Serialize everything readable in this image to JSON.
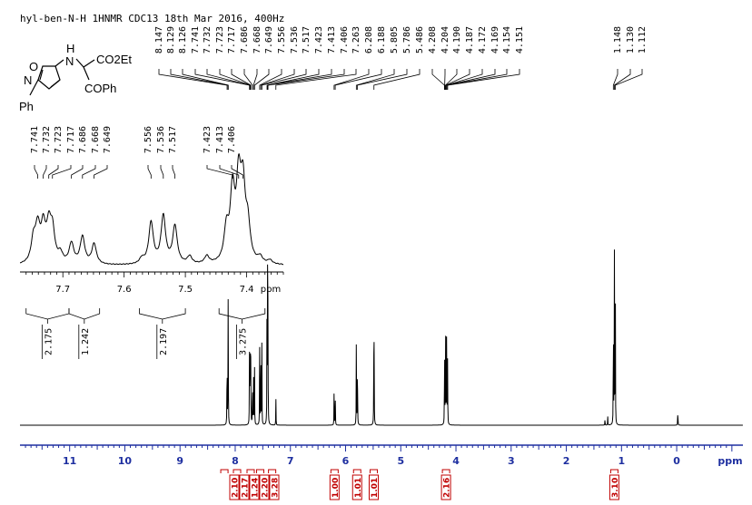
{
  "title": "hyl-ben-N-H 1HNMR CDC13 18th Mar 2016, 400Hz",
  "structure": {
    "ester": "CO2Et",
    "ketone": "COPh",
    "nh": "N",
    "h": "H",
    "ring_o": "O",
    "ring_n": "N",
    "ph": "Ph"
  },
  "colors": {
    "axis": "#1e2fa0",
    "integral_box": "#c00000",
    "trace": "#000000"
  },
  "chart_data": [
    {
      "type": "line",
      "title": "",
      "xlabel": "ppm",
      "xlim": [
        11.9,
        -1.2
      ],
      "x_reversed": true,
      "x_ticks": [
        11,
        10,
        9,
        8,
        7,
        6,
        5,
        4,
        3,
        2,
        1,
        0
      ],
      "peak_labels": [
        "8.147",
        "8.129",
        "8.126",
        "7.741",
        "7.732",
        "7.723",
        "7.717",
        "7.686",
        "7.668",
        "7.649",
        "7.556",
        "7.536",
        "7.517",
        "7.423",
        "7.413",
        "7.406",
        "7.263",
        "6.208",
        "6.188",
        "5.805",
        "5.786",
        "5.486",
        "4.208",
        "4.204",
        "4.190",
        "4.187",
        "4.172",
        "4.169",
        "4.154",
        "4.151",
        "1.148",
        "1.130",
        "1.112"
      ],
      "peaks": [
        {
          "x": 8.147,
          "h": 0.41
        },
        {
          "x": 8.129,
          "h": 0.43
        },
        {
          "x": 8.126,
          "h": 0.36
        },
        {
          "x": 7.741,
          "h": 0.31
        },
        {
          "x": 7.732,
          "h": 0.32
        },
        {
          "x": 7.723,
          "h": 0.3
        },
        {
          "x": 7.717,
          "h": 0.29
        },
        {
          "x": 7.686,
          "h": 0.26
        },
        {
          "x": 7.668,
          "h": 0.3
        },
        {
          "x": 7.649,
          "h": 0.26
        },
        {
          "x": 7.556,
          "h": 0.4
        },
        {
          "x": 7.536,
          "h": 0.45
        },
        {
          "x": 7.517,
          "h": 0.38
        },
        {
          "x": 7.423,
          "h": 0.6
        },
        {
          "x": 7.413,
          "h": 0.64
        },
        {
          "x": 7.406,
          "h": 0.58
        },
        {
          "x": 7.263,
          "h": 0.12
        },
        {
          "x": 6.208,
          "h": 0.17
        },
        {
          "x": 6.188,
          "h": 0.18
        },
        {
          "x": 5.805,
          "h": 0.41
        },
        {
          "x": 5.786,
          "h": 0.42
        },
        {
          "x": 5.486,
          "h": 0.83
        },
        {
          "x": 4.208,
          "h": 0.22
        },
        {
          "x": 4.204,
          "h": 0.22
        },
        {
          "x": 4.19,
          "h": 0.27
        },
        {
          "x": 4.187,
          "h": 0.27
        },
        {
          "x": 4.172,
          "h": 0.27
        },
        {
          "x": 4.169,
          "h": 0.26
        },
        {
          "x": 4.154,
          "h": 0.2
        },
        {
          "x": 4.151,
          "h": 0.2
        },
        {
          "x": 1.148,
          "h": 0.57
        },
        {
          "x": 1.13,
          "h": 1.0
        },
        {
          "x": 1.112,
          "h": 0.57
        },
        {
          "x": 1.3,
          "h": 0.03
        },
        {
          "x": 1.25,
          "h": 0.04
        },
        {
          "x": -0.02,
          "h": 0.09
        }
      ],
      "integrals": [
        {
          "x": 8.13,
          "value": "2.10"
        },
        {
          "x": 7.95,
          "value": "2.17"
        },
        {
          "x": 7.72,
          "value": "1.24"
        },
        {
          "x": 7.58,
          "value": "2.20"
        },
        {
          "x": 7.43,
          "value": "3.28"
        },
        {
          "x": 6.2,
          "value": "1.00"
        },
        {
          "x": 5.79,
          "value": "1.01"
        },
        {
          "x": 5.49,
          "value": "1.01"
        },
        {
          "x": 4.18,
          "value": "2.16"
        },
        {
          "x": 1.13,
          "value": "3.10"
        }
      ]
    },
    {
      "type": "line",
      "title": "",
      "xlabel": "ppm",
      "xlim": [
        7.77,
        7.34
      ],
      "x_reversed": true,
      "x_ticks": [
        7.7,
        7.6,
        7.5,
        7.4
      ],
      "peak_labels": [
        "7.741",
        "7.732",
        "7.723",
        "7.717",
        "7.686",
        "7.668",
        "7.649",
        "7.556",
        "7.536",
        "7.517",
        "7.423",
        "7.413",
        "7.406"
      ],
      "peaks": [
        {
          "x": 7.748,
          "h": 0.3
        },
        {
          "x": 7.741,
          "h": 0.44
        },
        {
          "x": 7.732,
          "h": 0.45
        },
        {
          "x": 7.723,
          "h": 0.44
        },
        {
          "x": 7.717,
          "h": 0.4
        },
        {
          "x": 7.704,
          "h": 0.12
        },
        {
          "x": 7.686,
          "h": 0.27
        },
        {
          "x": 7.668,
          "h": 0.36
        },
        {
          "x": 7.649,
          "h": 0.27
        },
        {
          "x": 7.571,
          "h": 0.07
        },
        {
          "x": 7.556,
          "h": 0.55
        },
        {
          "x": 7.536,
          "h": 0.63
        },
        {
          "x": 7.517,
          "h": 0.5
        },
        {
          "x": 7.493,
          "h": 0.1
        },
        {
          "x": 7.465,
          "h": 0.1
        },
        {
          "x": 7.433,
          "h": 0.42
        },
        {
          "x": 7.423,
          "h": 0.9
        },
        {
          "x": 7.413,
          "h": 1.0
        },
        {
          "x": 7.406,
          "h": 0.92
        },
        {
          "x": 7.398,
          "h": 0.45
        },
        {
          "x": 7.378,
          "h": 0.08
        },
        {
          "x": 7.362,
          "h": 0.05
        }
      ],
      "integrals": [
        {
          "x_from": 7.76,
          "x_to": 7.69,
          "value": "2.175"
        },
        {
          "x_from": 7.69,
          "x_to": 7.64,
          "value": "1.242"
        },
        {
          "x_from": 7.575,
          "x_to": 7.5,
          "value": "2.197"
        },
        {
          "x_from": 7.445,
          "x_to": 7.37,
          "value": "3.275"
        }
      ]
    }
  ]
}
